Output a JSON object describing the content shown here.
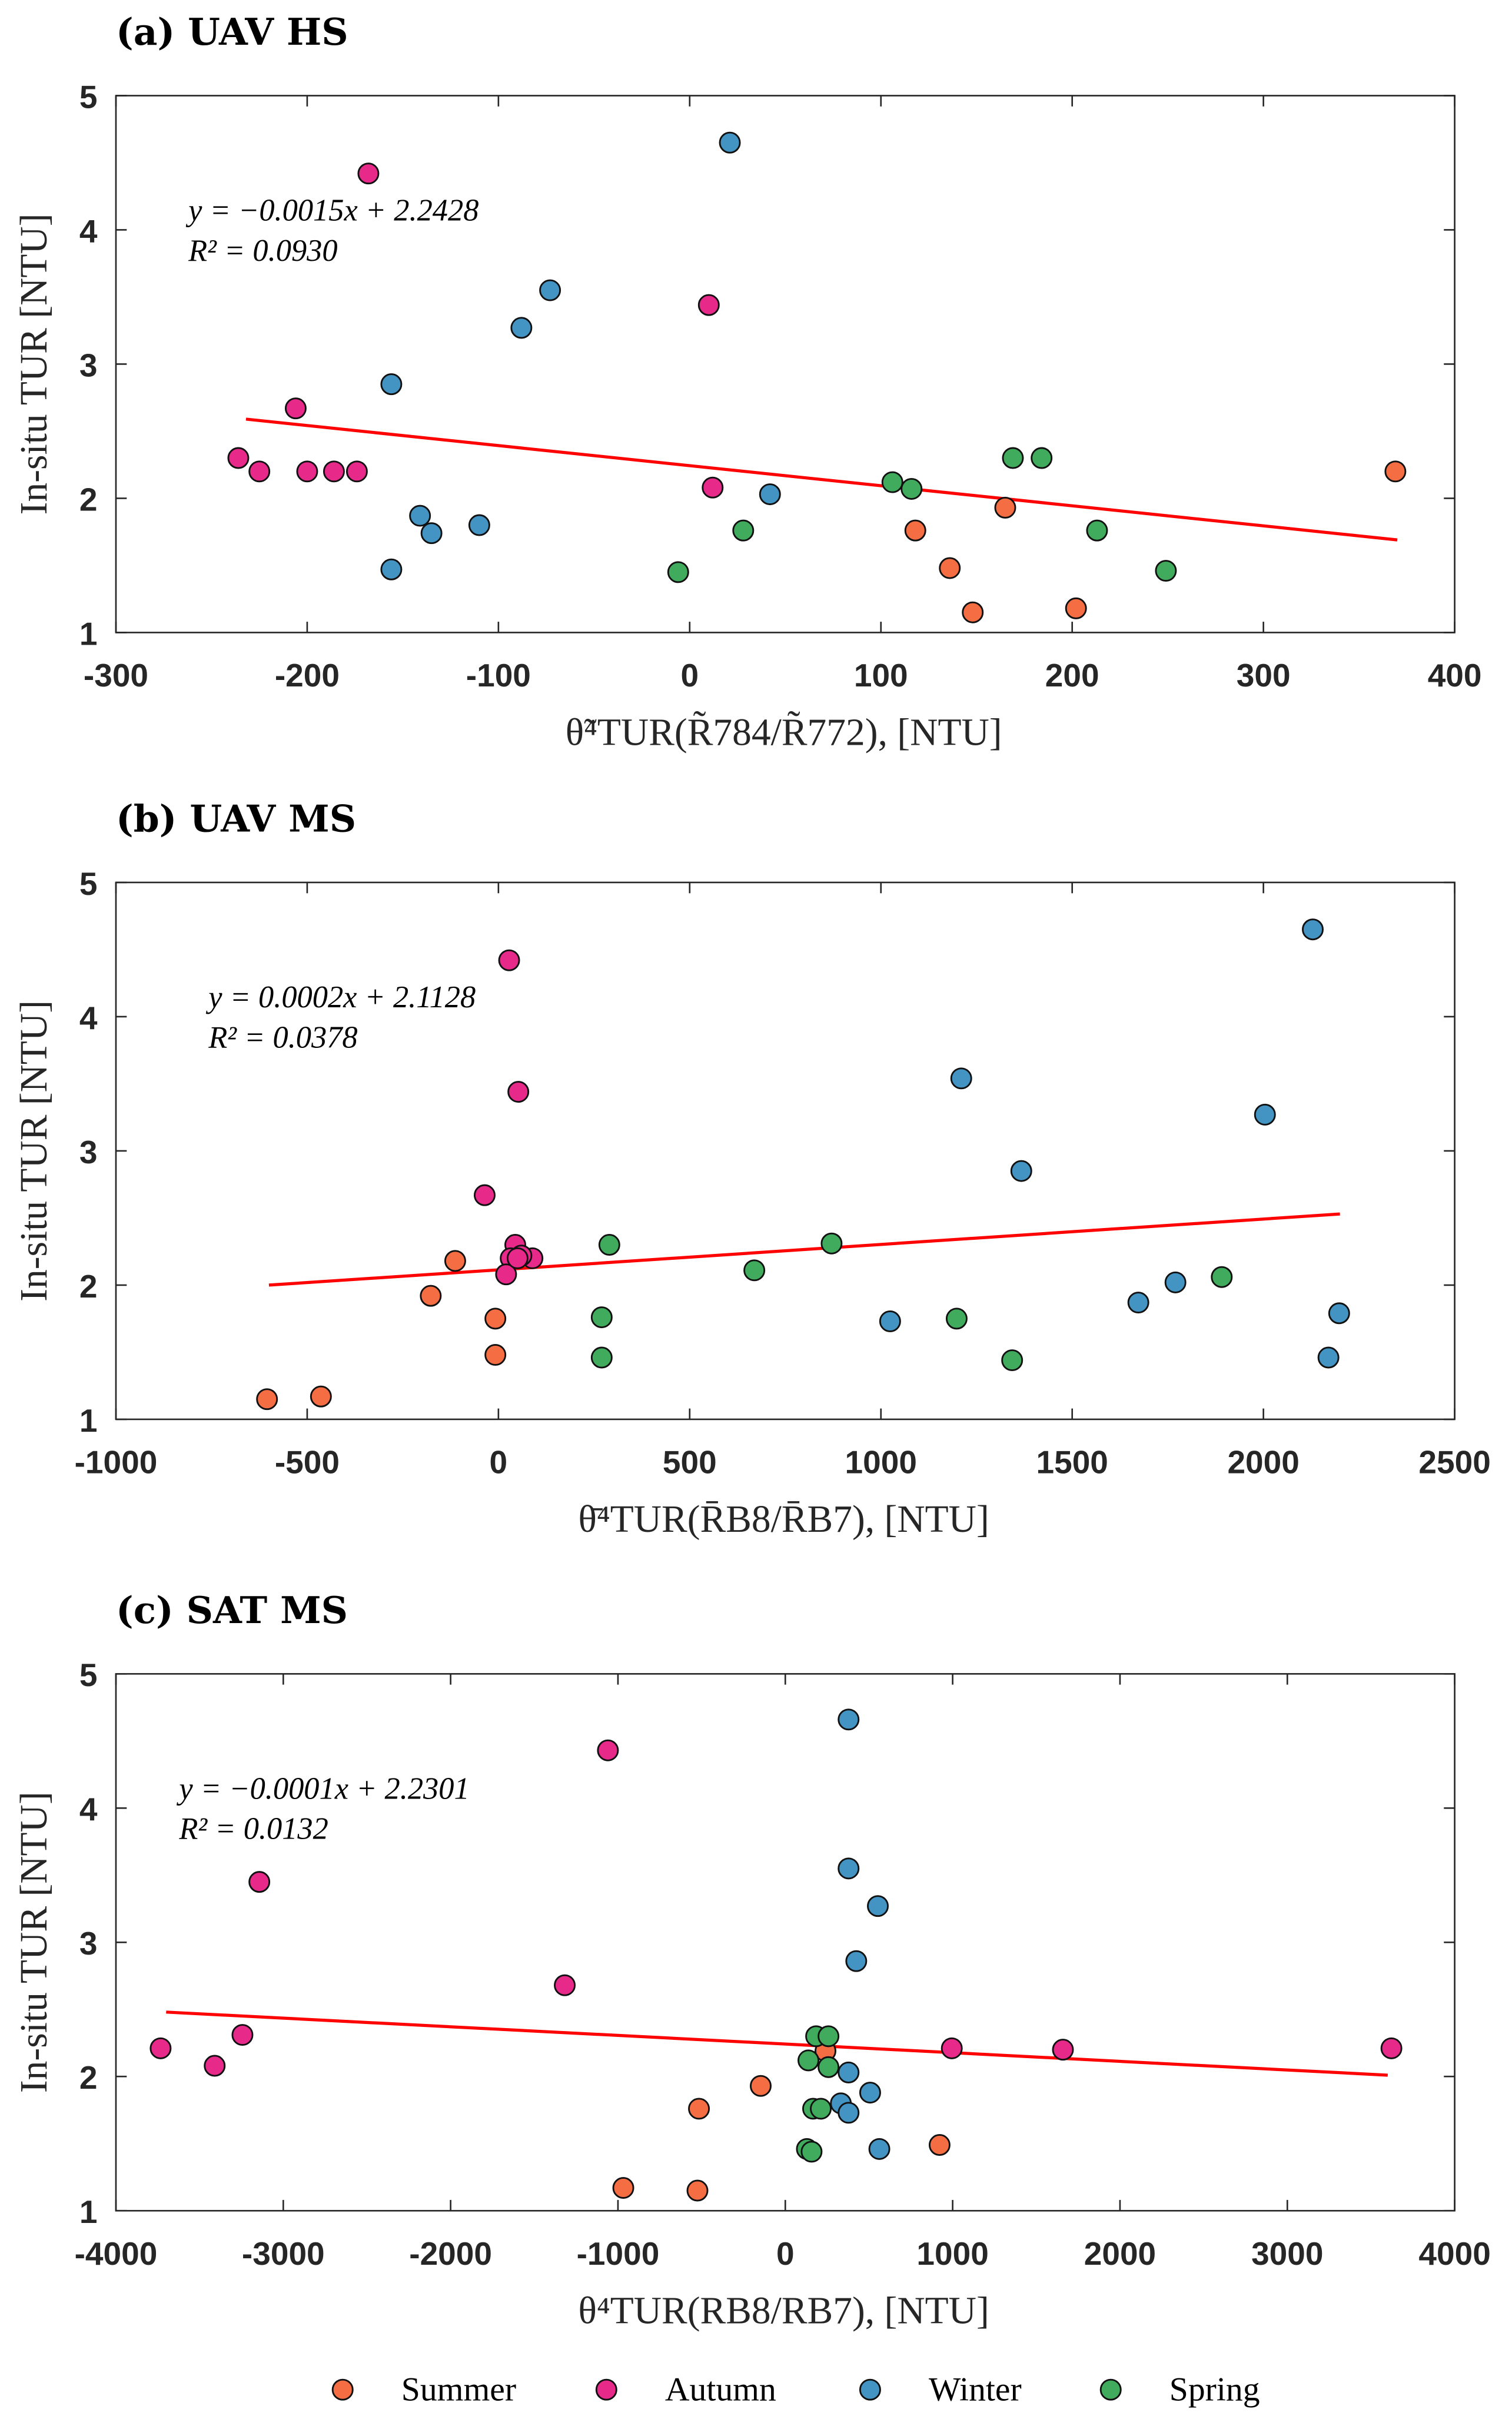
{
  "colors": {
    "Summer": "#f46d43",
    "Autumn": "#e7298a",
    "Winter": "#4393c3",
    "Spring": "#41ab5d",
    "fit": "#ff0000"
  },
  "legend": [
    "Summer",
    "Autumn",
    "Winter",
    "Spring"
  ],
  "chart_data": [
    {
      "type": "scatter",
      "title": "(a)  UAV HS",
      "xlabel": "θ̃⁴TUR(R̃784/R̃772), [NTU]",
      "ylabel": "In-situ TUR [NTU]",
      "xlim": [
        -300,
        400
      ],
      "ylim": [
        1,
        5
      ],
      "xticks": [
        -300,
        -200,
        -100,
        0,
        100,
        200,
        300,
        400
      ],
      "yticks": [
        1,
        2,
        3,
        4,
        5
      ],
      "equation": "y = −0.0015x + 2.2428",
      "r2": "R² = 0.0930",
      "fit_line": [
        [
          -232,
          2.59
        ],
        [
          370,
          1.69
        ]
      ],
      "series": [
        {
          "name": "Summer",
          "points": [
            [
              369,
              2.2
            ],
            [
              118,
              1.76
            ],
            [
              165,
              1.93
            ],
            [
              136,
              1.48
            ],
            [
              148,
              1.15
            ],
            [
              202,
              1.18
            ]
          ]
        },
        {
          "name": "Autumn",
          "points": [
            [
              -168,
              4.42
            ],
            [
              -206,
              2.67
            ],
            [
              -236,
              2.3
            ],
            [
              -225,
              2.2
            ],
            [
              -200,
              2.2
            ],
            [
              -186,
              2.2
            ],
            [
              -174,
              2.2
            ],
            [
              10,
              3.44
            ],
            [
              12,
              2.08
            ]
          ]
        },
        {
          "name": "Winter",
          "points": [
            [
              21,
              4.65
            ],
            [
              -73,
              3.55
            ],
            [
              -88,
              3.27
            ],
            [
              -156,
              2.85
            ],
            [
              -141,
              1.87
            ],
            [
              -135,
              1.74
            ],
            [
              -110,
              1.8
            ],
            [
              -156,
              1.47
            ],
            [
              42,
              2.03
            ]
          ]
        },
        {
          "name": "Spring",
          "points": [
            [
              -6,
              1.45
            ],
            [
              28,
              1.76
            ],
            [
              106,
              2.12
            ],
            [
              116,
              2.07
            ],
            [
              169,
              2.3
            ],
            [
              184,
              2.3
            ],
            [
              213,
              1.76
            ],
            [
              249,
              1.46
            ]
          ]
        }
      ]
    },
    {
      "type": "scatter",
      "title": "(b)  UAV MS",
      "xlabel": "θ̄⁴TUR(R̄B8/R̄B7), [NTU]",
      "ylabel": "In-situ TUR [NTU]",
      "xlim": [
        -1000,
        2500
      ],
      "ylim": [
        1,
        5
      ],
      "xticks": [
        -1000,
        -500,
        0,
        500,
        1000,
        1500,
        2000,
        2500
      ],
      "yticks": [
        1,
        2,
        3,
        4,
        5
      ],
      "equation": "y = 0.0002x + 2.1128",
      "r2": "R² = 0.0378",
      "fit_line": [
        [
          -600,
          2.0
        ],
        [
          2200,
          2.53
        ]
      ],
      "series": [
        {
          "name": "Summer",
          "points": [
            [
              -113,
              2.18
            ],
            [
              -177,
              1.92
            ],
            [
              -8,
              1.75
            ],
            [
              -8,
              1.48
            ],
            [
              -605,
              1.15
            ],
            [
              -464,
              1.17
            ]
          ]
        },
        {
          "name": "Autumn",
          "points": [
            [
              28,
              4.42
            ],
            [
              -36,
              2.67
            ],
            [
              52,
              3.44
            ],
            [
              44,
              2.3
            ],
            [
              32,
              2.2
            ],
            [
              89,
              2.2
            ],
            [
              20,
              2.08
            ],
            [
              60,
              2.22
            ],
            [
              50,
              2.2
            ]
          ]
        },
        {
          "name": "Winter",
          "points": [
            [
              2129,
              4.65
            ],
            [
              1210,
              3.54
            ],
            [
              2004,
              3.27
            ],
            [
              1367,
              2.85
            ],
            [
              1770,
              2.02
            ],
            [
              1673,
              1.87
            ],
            [
              2198,
              1.79
            ],
            [
              1024,
              1.73
            ],
            [
              2170,
              1.46
            ]
          ]
        },
        {
          "name": "Spring",
          "points": [
            [
              290,
              2.3
            ],
            [
              871,
              2.31
            ],
            [
              669,
              2.11
            ],
            [
              270,
              1.76
            ],
            [
              1198,
              1.75
            ],
            [
              1891,
              2.06
            ],
            [
              1343,
              1.44
            ],
            [
              270,
              1.46
            ]
          ]
        }
      ]
    },
    {
      "type": "scatter",
      "title": "(c)  SAT MS",
      "xlabel": "θ⁴TUR(RB8/RB7), [NTU]",
      "ylabel": "In-situ TUR [NTU]",
      "xlim": [
        -4000,
        4000
      ],
      "ylim": [
        1,
        5
      ],
      "xticks": [
        -4000,
        -3000,
        -2000,
        -1000,
        0,
        1000,
        2000,
        3000,
        4000
      ],
      "yticks": [
        1,
        2,
        3,
        4,
        5
      ],
      "equation": "y = −0.0001x + 2.2301",
      "r2": "R² = 0.0132",
      "fit_line": [
        [
          -3700,
          2.48
        ],
        [
          3600,
          2.01
        ]
      ],
      "series": [
        {
          "name": "Summer",
          "points": [
            [
              -147,
              1.93
            ],
            [
              -516,
              1.76
            ],
            [
              922,
              1.49
            ],
            [
              -968,
              1.17
            ],
            [
              -525,
              1.15
            ],
            [
              240,
              2.19
            ]
          ]
        },
        {
          "name": "Autumn",
          "points": [
            [
              -1060,
              4.43
            ],
            [
              -3143,
              3.45
            ],
            [
              -1318,
              2.68
            ],
            [
              -3244,
              2.31
            ],
            [
              -3733,
              2.21
            ],
            [
              -3410,
              2.08
            ],
            [
              995,
              2.21
            ],
            [
              1659,
              2.2
            ],
            [
              3622,
              2.21
            ]
          ]
        },
        {
          "name": "Winter",
          "points": [
            [
              378,
              4.66
            ],
            [
              378,
              3.55
            ],
            [
              553,
              3.27
            ],
            [
              424,
              2.86
            ],
            [
              378,
              2.03
            ],
            [
              507,
              1.88
            ],
            [
              332,
              1.8
            ],
            [
              378,
              1.73
            ],
            [
              562,
              1.46
            ]
          ]
        },
        {
          "name": "Spring",
          "points": [
            [
              184,
              2.3
            ],
            [
              258,
              2.3
            ],
            [
              138,
              2.12
            ],
            [
              258,
              2.07
            ],
            [
              166,
              1.76
            ],
            [
              212,
              1.76
            ],
            [
              129,
              1.46
            ],
            [
              157,
              1.44
            ]
          ]
        }
      ]
    }
  ]
}
